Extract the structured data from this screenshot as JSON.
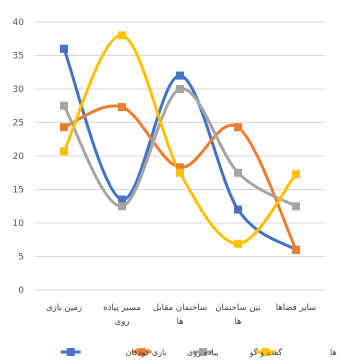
{
  "chart_data": {
    "type": "line",
    "categories": [
      [
        "زمین بازی"
      ],
      [
        "مسیر پیاده",
        "روی"
      ],
      [
        "ساختمان مقابل",
        "ها"
      ],
      [
        "بین ساختمان",
        "ها"
      ],
      [
        "سایر فضاها"
      ]
    ],
    "series": [
      {
        "name": "بازی کودکان",
        "color": "#4472c4",
        "values": [
          36,
          13.5,
          32,
          12,
          6
        ]
      },
      {
        "name": "پیاده روی",
        "color": "#ed7d31",
        "values": [
          24.3,
          27.3,
          18.3,
          24.3,
          6
        ]
      },
      {
        "name": "گفت و گو",
        "color": "#a5a5a5",
        "values": [
          27.5,
          12.5,
          30,
          17.5,
          12.5
        ]
      },
      {
        "name": "سایر فعالیت ها",
        "color": "#ffc000",
        "values": [
          20.7,
          38,
          17.5,
          6.9,
          17.3
        ]
      }
    ],
    "yticks": [
      0,
      5,
      10,
      15,
      20,
      25,
      30,
      35,
      40
    ],
    "ylim": [
      0,
      40
    ],
    "grid": true,
    "legend_position": "bottom",
    "smooth": true,
    "marker": "square"
  }
}
